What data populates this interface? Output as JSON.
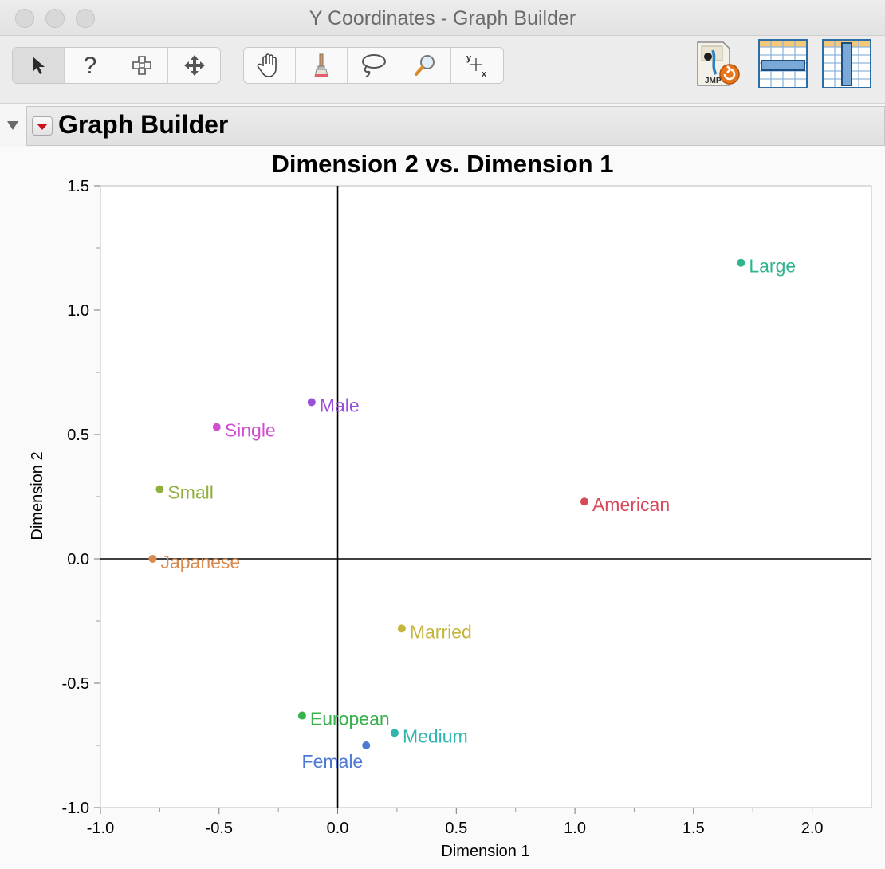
{
  "window": {
    "title": "Y Coordinates - Graph Builder"
  },
  "toolbar": {
    "tools": [
      {
        "name": "arrow-tool",
        "icon": "arrow-pointer-icon",
        "active": true
      },
      {
        "name": "help-tool",
        "icon": "question-mark-icon"
      },
      {
        "name": "selection-tool",
        "icon": "crosshair-select-icon"
      },
      {
        "name": "scroller-tool",
        "icon": "move-arrows-icon"
      },
      {
        "name": "grabber-tool",
        "icon": "hand-icon"
      },
      {
        "name": "brush-tool",
        "icon": "brush-icon"
      },
      {
        "name": "lasso-tool",
        "icon": "lasso-icon"
      },
      {
        "name": "magnifier-tool",
        "icon": "magnifier-icon"
      },
      {
        "name": "crosshairs-tool",
        "icon": "crosshairs-yx-icon"
      }
    ],
    "crosshair_y": "y",
    "crosshair_x": "x",
    "jmp_label": "JMP"
  },
  "report": {
    "title": "Graph Builder"
  },
  "colors": {
    "Large": "#2fb48e",
    "American": "#d8485b",
    "Male": "#9b4fd8",
    "Single": "#d04fcf",
    "Small": "#8fb03c",
    "Japanese": "#d98a4c",
    "Married": "#c6b53c",
    "European": "#35b24a",
    "Medium": "#2fb5b0",
    "Female": "#4b79d3"
  },
  "chart_data": {
    "type": "scatter",
    "title": "Dimension 2 vs. Dimension 1",
    "xlabel": "Dimension 1",
    "ylabel": "Dimension 2",
    "xlim": [
      -1.0,
      2.25
    ],
    "ylim": [
      -1.0,
      1.5
    ],
    "xticks": [
      "-1.0",
      "-0.5",
      "0.0",
      "0.5",
      "1.0",
      "1.5",
      "2.0"
    ],
    "yticks": [
      "-1.0",
      "-0.5",
      "0.0",
      "0.5",
      "1.0",
      "1.5"
    ],
    "reference_lines": {
      "x": 0,
      "y": 0
    },
    "grid": false,
    "points": [
      {
        "label": "Large",
        "x": 1.7,
        "y": 1.19
      },
      {
        "label": "American",
        "x": 1.04,
        "y": 0.23
      },
      {
        "label": "Male",
        "x": -0.11,
        "y": 0.63
      },
      {
        "label": "Single",
        "x": -0.51,
        "y": 0.53
      },
      {
        "label": "Small",
        "x": -0.75,
        "y": 0.28
      },
      {
        "label": "Japanese",
        "x": -0.78,
        "y": 0.0
      },
      {
        "label": "Married",
        "x": 0.27,
        "y": -0.28
      },
      {
        "label": "European",
        "x": -0.15,
        "y": -0.63
      },
      {
        "label": "Medium",
        "x": 0.24,
        "y": -0.7
      },
      {
        "label": "Female",
        "x": 0.12,
        "y": -0.75
      }
    ]
  }
}
